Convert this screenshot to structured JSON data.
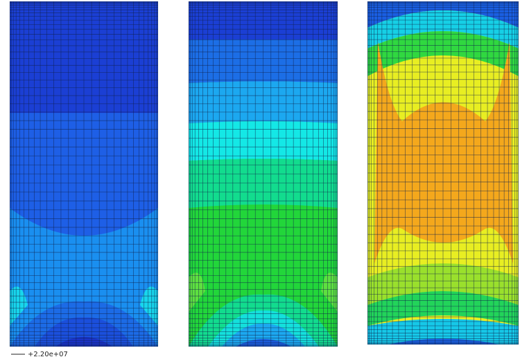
{
  "legend": {
    "label": "+2.20e+07"
  }
}
